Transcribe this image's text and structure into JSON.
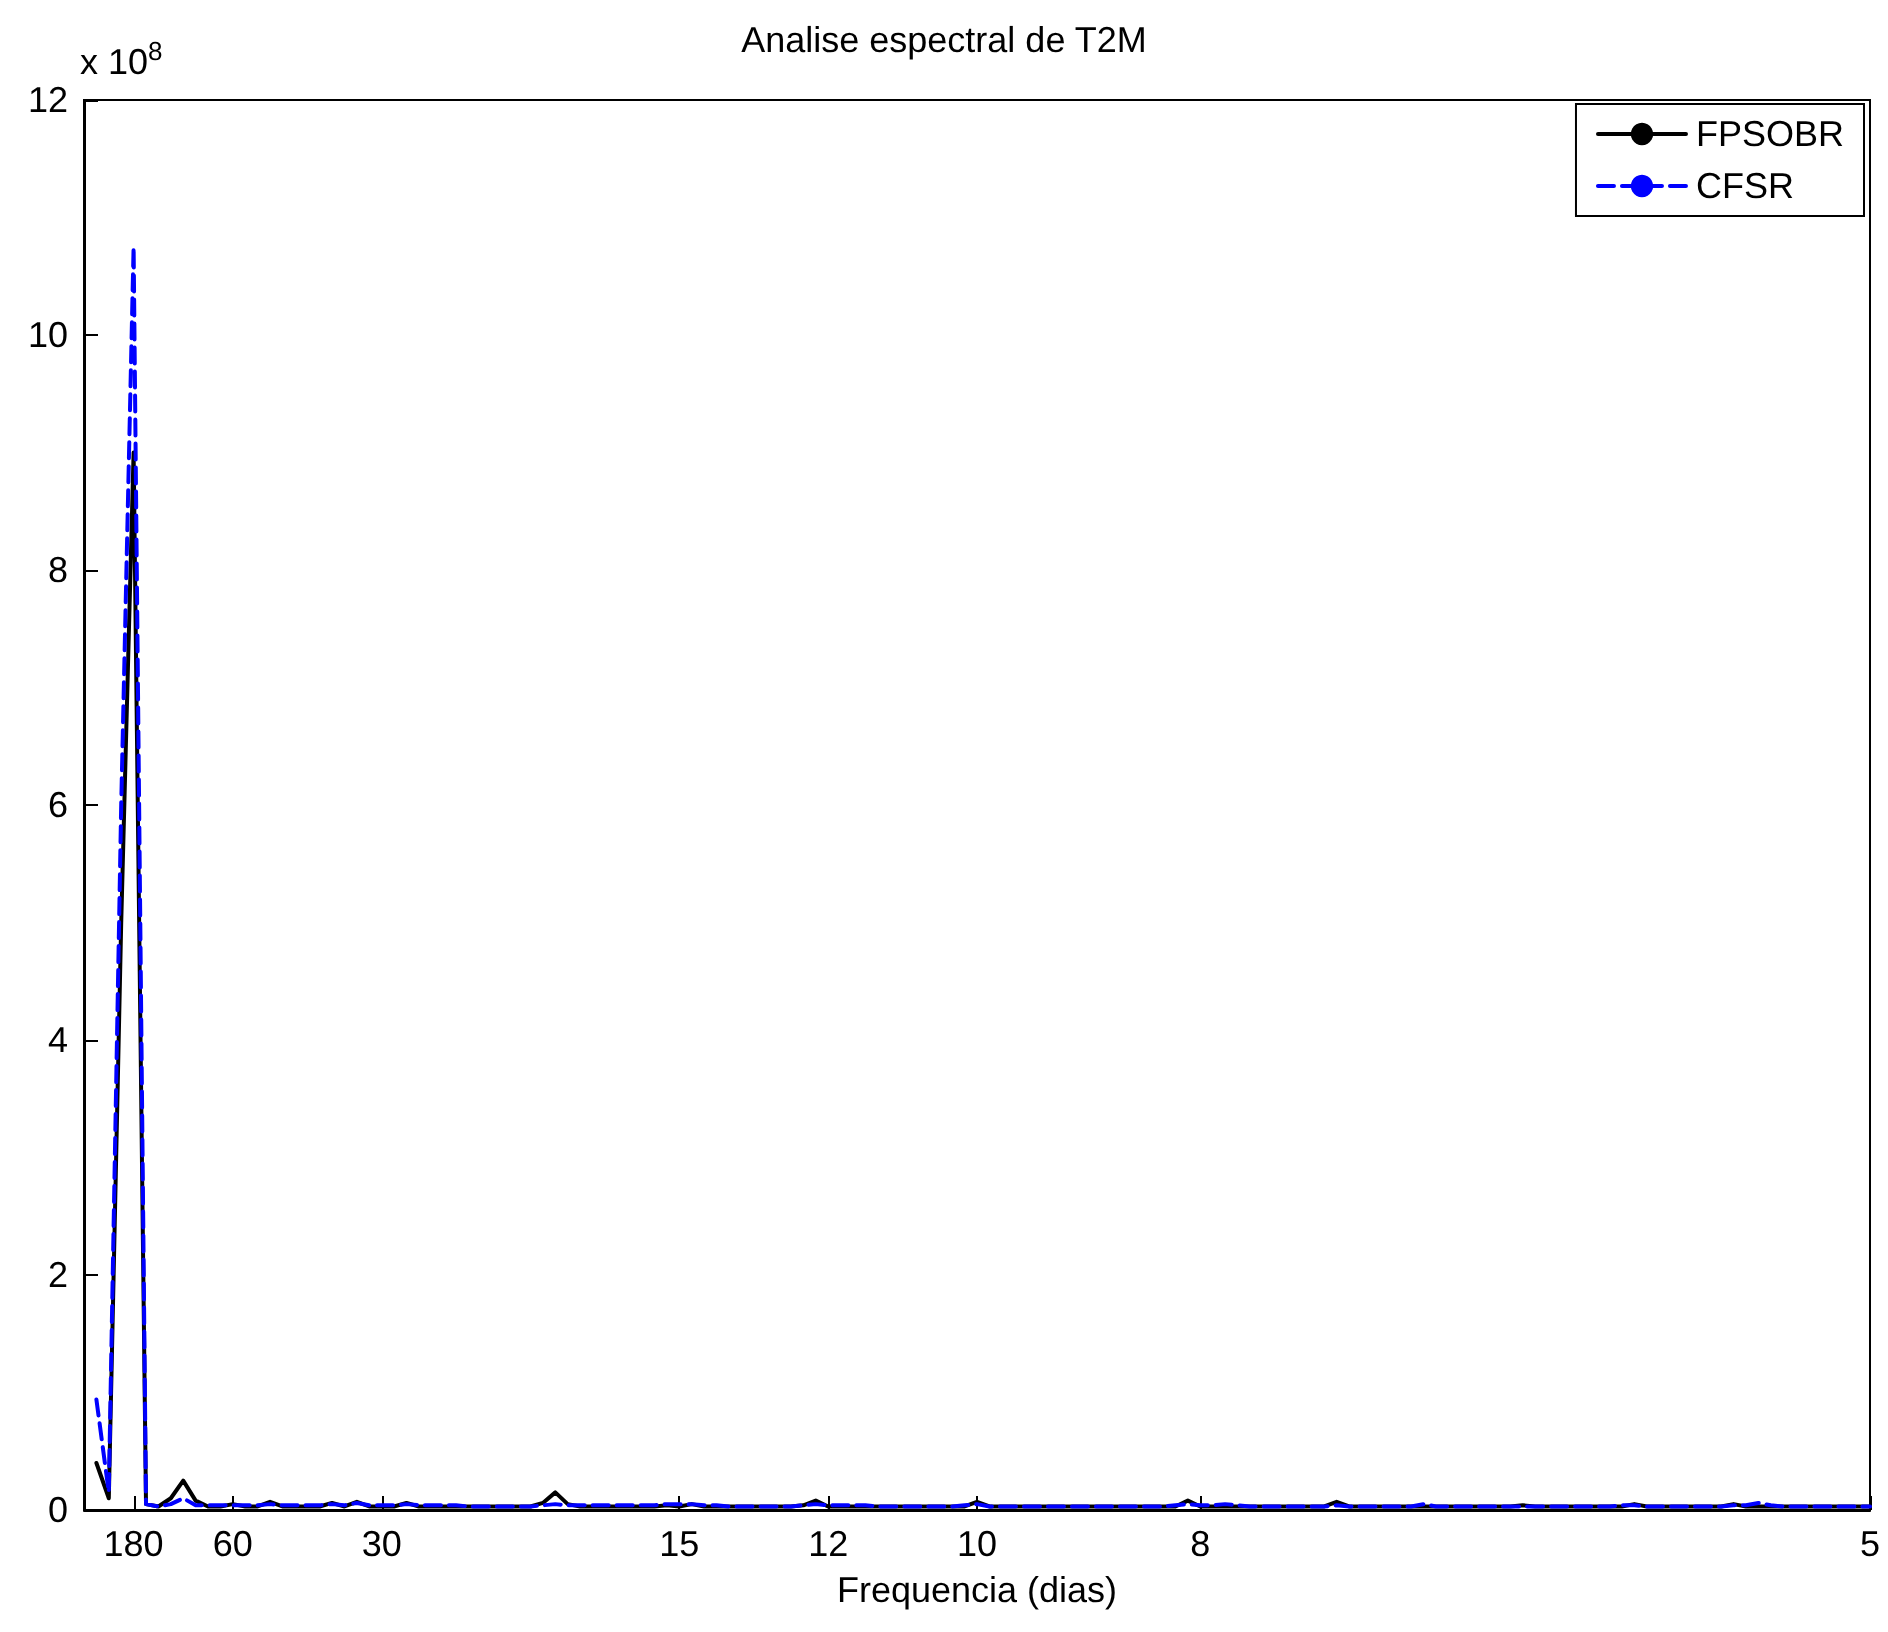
{
  "chart_data": {
    "type": "line",
    "title": "Analise espectral de T2M",
    "xlabel": "Frequencia (dias)",
    "annotations": [
      "x 10$^{8}$"
    ],
    "categories": [
      null,
      null,
      null,
      null,
      "180",
      null,
      null,
      null,
      null,
      null,
      null,
      null,
      "60",
      null,
      null,
      null,
      null,
      null,
      null,
      null,
      null,
      null,
      null,
      null,
      "30",
      null,
      null,
      null,
      null,
      null,
      null,
      null,
      null,
      null,
      null,
      null,
      null,
      null,
      null,
      null,
      null,
      null,
      null,
      null,
      null,
      null,
      null,
      null,
      "15",
      null,
      null,
      null,
      null,
      null,
      null,
      null,
      null,
      null,
      null,
      null,
      "12",
      null,
      null,
      null,
      null,
      null,
      null,
      null,
      null,
      null,
      null,
      null,
      "10",
      null,
      null,
      null,
      null,
      null,
      null,
      null,
      null,
      null,
      null,
      null,
      null,
      null,
      null,
      null,
      null,
      null,
      "8",
      null,
      null,
      null,
      null,
      null,
      null,
      null,
      null,
      null,
      null,
      null,
      null,
      null,
      null,
      null,
      null,
      null,
      null,
      null,
      null,
      null,
      null,
      null,
      null,
      null,
      null,
      null,
      null,
      null,
      null,
      null,
      null,
      null,
      null,
      null,
      null,
      null,
      null,
      null,
      null,
      null,
      null,
      null,
      null,
      null,
      null,
      null,
      null,
      null,
      null,
      null,
      null,
      null,
      "5"
    ],
    "ylim": [
      0,
      12
    ],
    "yticks": [
      0,
      2,
      4,
      6,
      8,
      10,
      12
    ],
    "grid": false,
    "legend": "top right",
    "marker": "none",
    "series": [
      {
        "name": "FPSOBR",
        "color": "#000000",
        "line_style": "solid",
        "values": [
          null,
          0.4,
          0.1,
          5.0,
          9.0,
          0.05,
          0.03,
          0.1,
          0.25,
          0.08,
          0.03,
          0.03,
          0.05,
          0.03,
          0.03,
          0.07,
          0.03,
          0.03,
          0.03,
          0.03,
          0.06,
          0.03,
          0.07,
          0.03,
          0.03,
          0.03,
          0.06,
          0.03,
          0.03,
          0.03,
          0.03,
          0.03,
          0.03,
          0.03,
          0.03,
          0.03,
          0.03,
          0.06,
          0.15,
          0.05,
          0.03,
          0.03,
          0.03,
          0.03,
          0.03,
          0.03,
          0.03,
          0.04,
          0.03,
          0.05,
          0.03,
          0.03,
          0.03,
          0.03,
          0.03,
          0.03,
          0.03,
          0.03,
          0.04,
          0.08,
          0.03,
          0.03,
          0.03,
          0.03,
          0.03,
          0.03,
          0.03,
          0.03,
          0.03,
          0.03,
          0.03,
          0.03,
          0.07,
          0.03,
          0.03,
          0.03,
          0.03,
          0.03,
          0.03,
          0.03,
          0.03,
          0.03,
          0.03,
          0.03,
          0.03,
          0.03,
          0.03,
          0.03,
          0.03,
          0.08,
          0.03,
          0.03,
          0.03,
          0.03,
          0.03,
          0.03,
          0.03,
          0.03,
          0.03,
          0.03,
          0.03,
          0.07,
          0.03,
          0.03,
          0.03,
          0.03,
          0.03,
          0.03,
          0.03,
          0.03,
          0.03,
          0.03,
          0.03,
          0.03,
          0.03,
          0.03,
          0.04,
          0.03,
          0.03,
          0.03,
          0.03,
          0.03,
          0.03,
          0.03,
          0.03,
          0.05,
          0.03,
          0.03,
          0.03,
          0.03,
          0.03,
          0.03,
          0.03,
          0.05,
          0.03,
          0.03,
          0.03,
          0.03,
          0.03,
          0.03,
          0.03,
          0.03,
          0.03,
          0.03,
          0.03
        ]
      },
      {
        "name": "CFSR",
        "color": "#0000ff",
        "line_style": "dashed",
        "values": [
          null,
          0.94,
          0.15,
          6.0,
          10.75,
          0.05,
          0.03,
          0.05,
          0.1,
          0.04,
          0.04,
          0.04,
          0.04,
          0.04,
          0.04,
          0.05,
          0.04,
          0.04,
          0.04,
          0.04,
          0.05,
          0.04,
          0.06,
          0.04,
          0.04,
          0.04,
          0.05,
          0.04,
          0.04,
          0.04,
          0.04,
          0.03,
          0.03,
          0.03,
          0.03,
          0.03,
          0.03,
          0.04,
          0.05,
          0.04,
          0.04,
          0.04,
          0.04,
          0.04,
          0.04,
          0.04,
          0.04,
          0.05,
          0.05,
          0.05,
          0.04,
          0.04,
          0.03,
          0.03,
          0.03,
          0.03,
          0.03,
          0.03,
          0.04,
          0.05,
          0.04,
          0.04,
          0.04,
          0.04,
          0.03,
          0.03,
          0.03,
          0.03,
          0.03,
          0.03,
          0.03,
          0.04,
          0.05,
          0.03,
          0.03,
          0.03,
          0.03,
          0.03,
          0.03,
          0.03,
          0.03,
          0.03,
          0.03,
          0.03,
          0.03,
          0.03,
          0.03,
          0.03,
          0.04,
          0.05,
          0.04,
          0.04,
          0.05,
          0.04,
          0.03,
          0.03,
          0.03,
          0.03,
          0.03,
          0.03,
          0.03,
          0.04,
          0.03,
          0.03,
          0.03,
          0.03,
          0.03,
          0.03,
          0.05,
          0.03,
          0.03,
          0.03,
          0.03,
          0.03,
          0.03,
          0.03,
          0.03,
          0.03,
          0.03,
          0.03,
          0.03,
          0.03,
          0.03,
          0.03,
          0.04,
          0.04,
          0.03,
          0.03,
          0.03,
          0.03,
          0.03,
          0.03,
          0.03,
          0.04,
          0.04,
          0.06,
          0.04,
          0.03,
          0.03,
          0.03,
          0.03,
          0.03,
          0.03,
          0.03,
          0.03
        ]
      }
    ]
  }
}
